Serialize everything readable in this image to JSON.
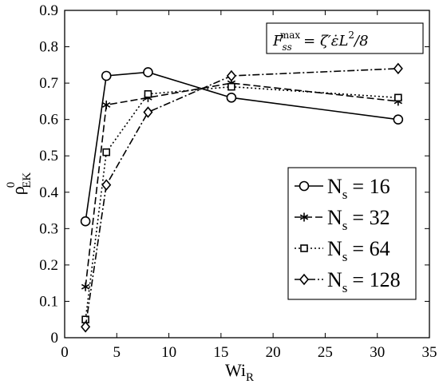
{
  "chart_data": {
    "type": "line",
    "xlabel_main": "Wi",
    "xlabel_sub": "R",
    "ylabel_main": "ρ",
    "ylabel_sup": "0",
    "ylabel_sub": "EK",
    "xlim": [
      0,
      35
    ],
    "ylim": [
      0,
      0.9
    ],
    "x_ticks": [
      0,
      5,
      10,
      15,
      20,
      25,
      30,
      35
    ],
    "y_ticks": [
      0,
      0.1,
      0.2,
      0.3,
      0.4,
      0.5,
      0.6,
      0.7,
      0.8,
      0.9
    ],
    "x_tick_labels": [
      "0",
      "5",
      "10",
      "15",
      "20",
      "25",
      "30",
      "35"
    ],
    "y_tick_labels": [
      "0",
      "0.1",
      "0.2",
      "0.3",
      "0.4",
      "0.5",
      "0.6",
      "0.7",
      "0.8",
      "0.9"
    ],
    "grid": false,
    "legend_position": "lower-right",
    "annotation": {
      "F": "F",
      "sub": "ss",
      "sup": "max",
      "rhs": "= ζ′ε̇L",
      "rhs_sup": "2",
      "rhs_tail": "/8"
    },
    "series": [
      {
        "name_main": "N",
        "name_sub": "s",
        "name_value": "= 16",
        "marker": "circle",
        "dash": "solid",
        "x": [
          2,
          4,
          8,
          16,
          32
        ],
        "y": [
          0.32,
          0.72,
          0.73,
          0.66,
          0.6
        ]
      },
      {
        "name_main": "N",
        "name_sub": "s",
        "name_value": "= 32",
        "marker": "asterisk",
        "dash": "dashed",
        "x": [
          2,
          4,
          8,
          16,
          32
        ],
        "y": [
          0.14,
          0.64,
          0.66,
          0.7,
          0.65
        ]
      },
      {
        "name_main": "N",
        "name_sub": "s",
        "name_value": "= 64",
        "marker": "square",
        "dash": "dotted",
        "x": [
          2,
          4,
          8,
          16,
          32
        ],
        "y": [
          0.05,
          0.51,
          0.67,
          0.69,
          0.66
        ]
      },
      {
        "name_main": "N",
        "name_sub": "s",
        "name_value": "= 128",
        "marker": "diamond",
        "dash": "dashdot",
        "x": [
          2,
          4,
          8,
          16,
          32
        ],
        "y": [
          0.03,
          0.42,
          0.62,
          0.72,
          0.74
        ]
      }
    ]
  }
}
